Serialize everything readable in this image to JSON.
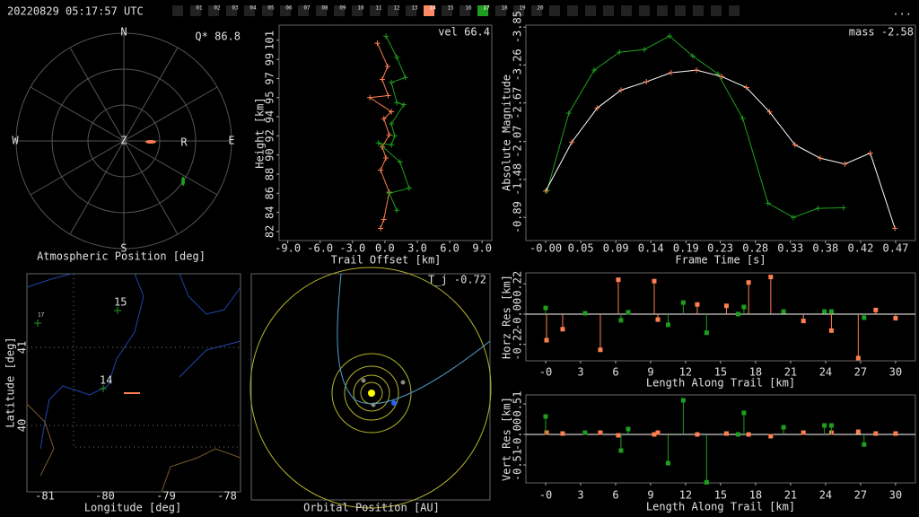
{
  "header": {
    "timestamp": "20220829 05:17:57 UTC",
    "menu": "...",
    "stations": [
      {
        "label": "01"
      },
      {
        "label": "02"
      },
      {
        "label": "03"
      },
      {
        "label": "04"
      },
      {
        "label": "05"
      },
      {
        "label": "06"
      },
      {
        "label": "07"
      },
      {
        "label": "08"
      },
      {
        "label": "09"
      },
      {
        "label": "10"
      },
      {
        "label": "11"
      },
      {
        "label": "12"
      },
      {
        "label": "13"
      },
      {
        "label": "14",
        "color": "#ff8a65"
      },
      {
        "label": "15"
      },
      {
        "label": "16"
      },
      {
        "label": "17",
        "color": "#1e9e1e"
      },
      {
        "label": "18"
      },
      {
        "label": "19"
      },
      {
        "label": "20"
      }
    ]
  },
  "sky": {
    "title": "Atmospheric Position [deg]",
    "annotation": "Q* 86.8",
    "north": "N",
    "east": "E",
    "south": "S",
    "west": "W",
    "zenith": "Z",
    "marker": "R"
  },
  "map": {
    "xlabel": "Longitude [deg]",
    "ylabel": "Latitude [deg]",
    "xticks": [
      "-81",
      "-80",
      "-79",
      "-78"
    ],
    "yticks": [
      "41",
      "40"
    ],
    "stations": [
      "17",
      "15",
      "14"
    ]
  },
  "orbit": {
    "title": "Orbital Position [AU]",
    "annotation": "T_j -0.72"
  },
  "chart_data": [
    {
      "type": "line",
      "annotation": "vel 66.4",
      "xlabel": "Trail Offset [km]",
      "ylabel": "Height [km]",
      "xlim": [
        -9.8,
        9.9
      ],
      "ylim": [
        81.2,
        102.6
      ],
      "xticks": [
        {
          "value": -9,
          "label": "-9.0"
        },
        {
          "value": -6,
          "label": "-6.0"
        },
        {
          "value": -3,
          "label": "-3.0"
        },
        {
          "value": 0,
          "label": "0.0"
        },
        {
          "value": 3,
          "label": "3.0"
        },
        {
          "value": 6,
          "label": "6.0"
        },
        {
          "value": 9,
          "label": "9.0"
        }
      ],
      "yticks": [
        {
          "value": 82.1,
          "label": "82"
        },
        {
          "value": 84.0,
          "label": "84"
        },
        {
          "value": 85.9,
          "label": "86"
        },
        {
          "value": 87.8,
          "label": "88"
        },
        {
          "value": 89.7,
          "label": "90"
        },
        {
          "value": 91.6,
          "label": "92"
        },
        {
          "value": 93.5,
          "label": "94"
        },
        {
          "value": 95.4,
          "label": "95"
        },
        {
          "value": 97.3,
          "label": "97"
        },
        {
          "value": 99.2,
          "label": "99"
        },
        {
          "value": 101.1,
          "label": "101"
        }
      ],
      "series": [
        {
          "color": "#ff7f50",
          "x": [
            -0.7,
            0.25,
            -0.25,
            0.3,
            -1.4,
            0.6,
            -0.1,
            0.4,
            -0.25,
            0.1,
            -0.4,
            0.4,
            -0.1,
            -0.4
          ],
          "values": [
            100.8,
            98.5,
            97.2,
            95.6,
            95.4,
            94.0,
            93.3,
            91.7,
            90.5,
            89.4,
            88.2,
            86.0,
            83.3,
            82.4
          ]
        },
        {
          "color": "#1e9e1e",
          "x": [
            0.1,
            1.1,
            1.9,
            0.6,
            1.1,
            1.75,
            0.6,
            0.9,
            0.6,
            -0.6,
            1.4,
            2.25,
            0.4,
            1.1
          ],
          "values": [
            101.5,
            99.4,
            97.4,
            96.9,
            94.9,
            94.7,
            92.8,
            91.6,
            90.7,
            90.9,
            89.0,
            86.4,
            85.9,
            84.2
          ]
        }
      ]
    },
    {
      "type": "line",
      "annotation": "mass -2.58",
      "xlabel": "Frame Time [s]",
      "ylabel": "Absolute Magnitude",
      "xlim": [
        -0.0265,
        0.4955
      ],
      "ylim": [
        -0.53,
        -3.88
      ],
      "xticks": [
        {
          "value": 0,
          "label": "-0.00"
        },
        {
          "value": 0.047,
          "label": "0.05"
        },
        {
          "value": 0.094,
          "label": "0.09"
        },
        {
          "value": 0.141,
          "label": "0.14"
        },
        {
          "value": 0.188,
          "label": "0.19"
        },
        {
          "value": 0.234,
          "label": "0.23"
        },
        {
          "value": 0.281,
          "label": "0.28"
        },
        {
          "value": 0.328,
          "label": "0.33"
        },
        {
          "value": 0.375,
          "label": "0.38"
        },
        {
          "value": 0.422,
          "label": "0.42"
        },
        {
          "value": 0.469,
          "label": "0.47"
        }
      ],
      "yticks": [
        -3.85,
        -3.26,
        -2.67,
        -2.07,
        -1.48,
        -0.89
      ],
      "series": [
        {
          "color": "#1e9e1e",
          "x": [
            0.002,
            0.031,
            0.065,
            0.099,
            0.132,
            0.166,
            0.197,
            0.231,
            0.264,
            0.298,
            0.332,
            0.365,
            0.399
          ],
          "values": [
            -1.31,
            -2.51,
            -3.18,
            -3.46,
            -3.5,
            -3.71,
            -3.4,
            -3.12,
            -2.43,
            -1.11,
            -0.89,
            -1.03,
            -1.04
          ]
        },
        {
          "color": "#ff7f50",
          "line_color": "#ffffff",
          "x": [
            0,
            0.035,
            0.069,
            0.101,
            0.135,
            0.168,
            0.202,
            0.236,
            0.269,
            0.3,
            0.334,
            0.368,
            0.401,
            0.435,
            0.468
          ],
          "values": [
            -1.3,
            -2.06,
            -2.59,
            -2.87,
            -3.0,
            -3.14,
            -3.18,
            -3.08,
            -2.91,
            -2.53,
            -2.02,
            -1.81,
            -1.72,
            -1.89,
            -0.72
          ]
        }
      ]
    },
    {
      "type": "stem",
      "zero_line": true,
      "xlabel": "Length Along Trail [km]",
      "ylabel": "Horz Res [km]",
      "xlim": [
        -1.69,
        31.7
      ],
      "ylim": [
        -0.34,
        0.3
      ],
      "xticks": [
        {
          "value": 0,
          "label": "-0"
        },
        3,
        6,
        9,
        12,
        15,
        18,
        21,
        24,
        27,
        30
      ],
      "yticks": [
        0.22,
        {
          "value": 0,
          "label": "-0.00"
        },
        -0.22
      ],
      "series": [
        {
          "color": "#ff7f50",
          "x": [
            0.08,
            1.46,
            4.69,
            6.23,
            9.31,
            9.62,
            13.0,
            15.5,
            17.4,
            19.3,
            22.1,
            24.5,
            26.8,
            28.3,
            30.0
          ],
          "values": [
            -0.19,
            -0.11,
            -0.26,
            0.25,
            0.24,
            -0.04,
            0.07,
            0.06,
            0.23,
            0.27,
            -0.05,
            -0.12,
            -0.32,
            0.03,
            -0.03
          ]
        },
        {
          "color": "#1e9e1e",
          "x": [
            0,
            3.38,
            6.46,
            7.08,
            10.5,
            11.8,
            13.8,
            16.5,
            17.0,
            20.4,
            23.9,
            24.5,
            27.3
          ],
          "values": [
            0.045,
            0.006,
            -0.045,
            0.013,
            -0.078,
            0.084,
            -0.136,
            0,
            0.052,
            0.019,
            0.019,
            0.019,
            -0.026
          ]
        }
      ]
    },
    {
      "type": "stem",
      "zero_line": true,
      "xlabel": "Length Along Trail [km]",
      "ylabel": "Vert Res [km]",
      "xlim": [
        -1.69,
        31.7
      ],
      "ylim": [
        -0.81,
        0.66
      ],
      "xticks": [
        {
          "value": 0,
          "label": "-0"
        },
        3,
        6,
        9,
        12,
        15,
        18,
        21,
        24,
        27,
        30
      ],
      "yticks": [
        0.51,
        {
          "value": 0,
          "label": "-0.00"
        },
        -0.51
      ],
      "series": [
        {
          "color": "#ff7f50",
          "x": [
            0.08,
            1.46,
            4.69,
            6.23,
            9.31,
            9.62,
            13.0,
            15.5,
            17.4,
            19.3,
            22.1,
            24.5,
            26.8,
            28.3,
            30.0
          ],
          "values": [
            0.03,
            0.015,
            0.03,
            -0.015,
            0,
            0.03,
            0,
            0.015,
            0,
            -0.03,
            0.03,
            0.03,
            0.045,
            0.015,
            0.015
          ]
        },
        {
          "color": "#1e9e1e",
          "x": [
            0,
            3.38,
            6.46,
            7.08,
            10.5,
            11.8,
            13.8,
            16.5,
            17.0,
            20.4,
            23.9,
            24.5,
            27.3
          ],
          "values": [
            0.3,
            0.03,
            -0.27,
            0.09,
            -0.48,
            0.57,
            -0.8,
            0,
            0.36,
            0.12,
            0.15,
            0.15,
            -0.17
          ]
        }
      ]
    }
  ]
}
